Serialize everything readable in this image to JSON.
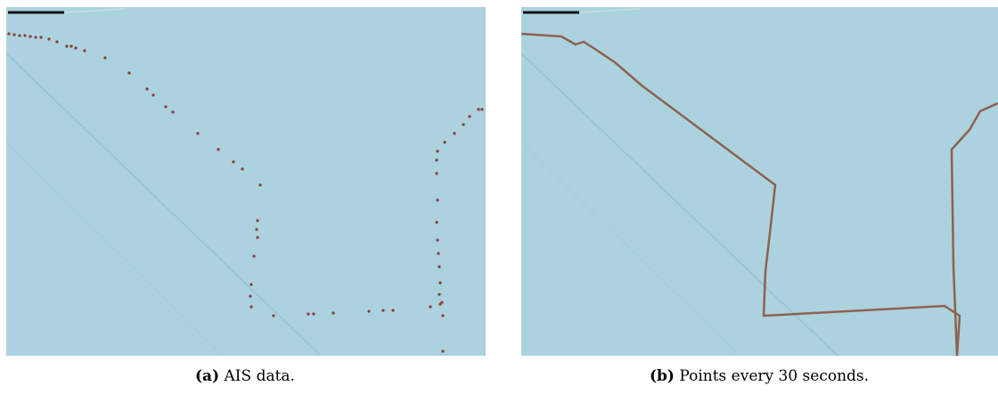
{
  "figures": [
    {
      "label": "(a)",
      "caption": "AIS data."
    },
    {
      "label": "(b)",
      "caption": "Points every 30 seconds."
    }
  ]
}
